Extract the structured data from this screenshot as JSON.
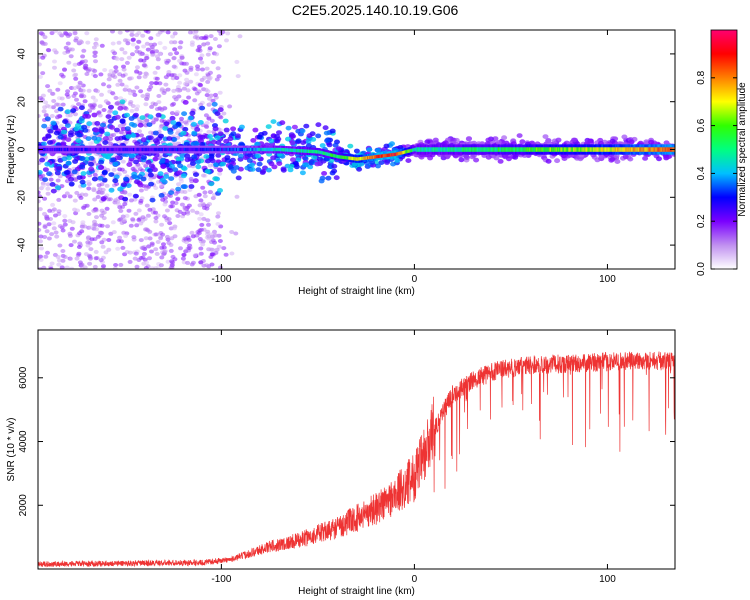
{
  "title": "C2E5.2025.140.10.19.G06",
  "chart_data": [
    {
      "type": "heatmap",
      "xlabel": "Height of straight line (km)",
      "ylabel": "Frequency (Hz)",
      "xlim": [
        -195,
        135
      ],
      "ylim": [
        -50,
        50
      ],
      "x_ticks": [
        -100,
        0,
        100
      ],
      "y_ticks": [
        -40,
        -20,
        0,
        20,
        40
      ],
      "colorbar": {
        "label": "Normalized spectral amplitude",
        "range": [
          0,
          1
        ],
        "ticks": [
          "0.0",
          "0.2",
          "0.4",
          "0.6",
          "0.8"
        ],
        "tick_values": [
          0.0,
          0.2,
          0.4,
          0.6,
          0.8
        ],
        "colors": [
          "#ffffff",
          "#c090f0",
          "#7a00ff",
          "#0000ff",
          "#00c0ff",
          "#00ff80",
          "#30ff00",
          "#ffff00",
          "#ff8000",
          "#ff0000",
          "#ff0070"
        ]
      },
      "ridge": {
        "description_points_x": [
          -195,
          -150,
          -100,
          -70,
          -50,
          -40,
          -30,
          -20,
          -10,
          0,
          20,
          50,
          100,
          135
        ],
        "frequency_y": [
          0,
          0,
          0,
          0,
          -1,
          -3,
          -4,
          -3,
          -2,
          0,
          0,
          0,
          0,
          0
        ],
        "amplitude": [
          0.25,
          0.25,
          0.3,
          0.45,
          0.5,
          0.55,
          0.7,
          0.85,
          0.9,
          0.45,
          0.5,
          0.55,
          0.7,
          0.85
        ]
      }
    },
    {
      "type": "line",
      "xlabel": "Height of straight line (km)",
      "ylabel": "SNR (10 * v/v)",
      "xlim": [
        -195,
        135
      ],
      "ylim": [
        0,
        7500
      ],
      "x_ticks": [
        -100,
        0,
        100
      ],
      "y_ticks": [
        2000,
        4000,
        6000
      ],
      "color": "#ee3333",
      "x": [
        -195,
        -150,
        -110,
        -95,
        -85,
        -75,
        -60,
        -50,
        -40,
        -30,
        -20,
        -10,
        0,
        5,
        10,
        15,
        20,
        30,
        40,
        50,
        60,
        80,
        100,
        120,
        135
      ],
      "y": [
        150,
        180,
        200,
        300,
        500,
        700,
        900,
        1100,
        1300,
        1600,
        1900,
        2300,
        2900,
        3500,
        4300,
        5000,
        5500,
        5900,
        6200,
        6300,
        6400,
        6450,
        6500,
        6550,
        6500
      ]
    }
  ]
}
